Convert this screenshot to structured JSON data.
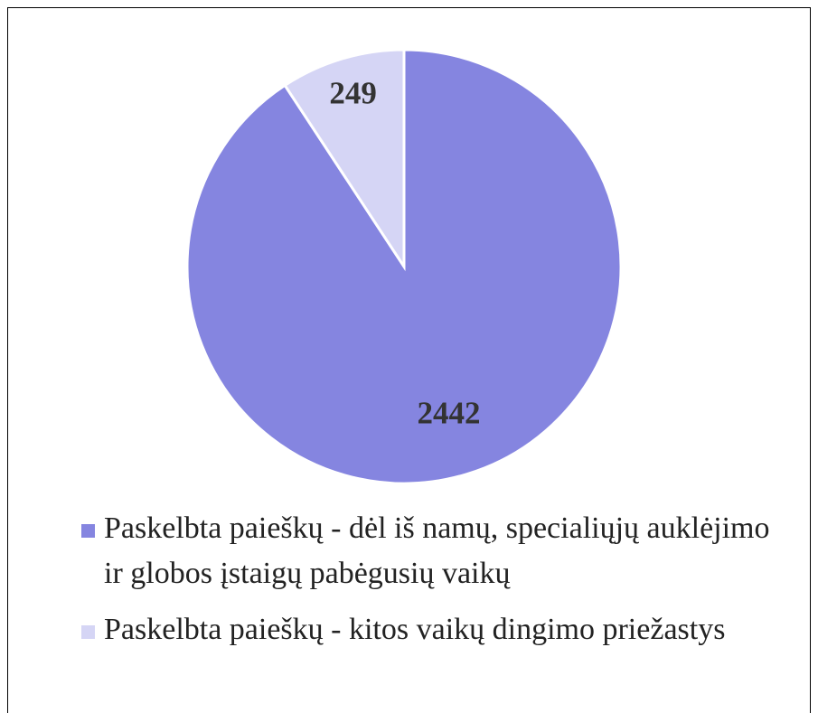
{
  "chart_data": {
    "type": "pie",
    "categories": [
      "Paskelbta paieškų - dėl iš namų, specialiųjų auklėjimo ir globos įstaigų pabėgusių vaikų",
      "Paskelbta paieškų - kitos vaikų dingimo priežastys"
    ],
    "values": [
      2442,
      249
    ],
    "colors": [
      "#8585e0",
      "#d5d5f5"
    ],
    "legend": "bottom"
  }
}
